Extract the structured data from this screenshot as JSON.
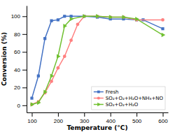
{
  "chart_data": {
    "type": "line",
    "xlabel": "Temperature (°C)",
    "ylabel": "Conversion (%)",
    "xlim": [
      80,
      620
    ],
    "ylim": [
      -8,
      112
    ],
    "xticks": [
      100,
      200,
      300,
      400,
      500,
      600
    ],
    "yticks": [
      0,
      20,
      40,
      60,
      80,
      100
    ],
    "grid": false,
    "legend": "lower right",
    "series": [
      {
        "name": "Fresh",
        "color": "#4472c4",
        "marker": "square",
        "x": [
          100,
          125,
          150,
          175,
          200,
          225,
          250,
          300,
          350,
          400,
          450,
          500,
          525,
          600
        ],
        "values": [
          8,
          33,
          75,
          95,
          96,
          100,
          100,
          100,
          99,
          97,
          97,
          96,
          96,
          86
        ]
      },
      {
        "name": "SO₂+O₂+H₂O+NH₃+NO",
        "color": "#ff8080",
        "marker": "circle",
        "x": [
          100,
          125,
          150,
          175,
          200,
          225,
          250,
          275,
          300,
          350,
          400,
          450,
          500,
          600
        ],
        "values": [
          1,
          4,
          14,
          27,
          42,
          55,
          73,
          91,
          100,
          100,
          99,
          99,
          96,
          96
        ]
      },
      {
        "name": "SO₂+O₂+H₂O",
        "color": "#70c030",
        "marker": "triangle-right",
        "x": [
          100,
          125,
          150,
          175,
          200,
          225,
          250,
          300,
          350,
          400,
          450,
          500,
          600
        ],
        "values": [
          1,
          3,
          15,
          33,
          55,
          89,
          97,
          100,
          100,
          99,
          99,
          97,
          79
        ]
      }
    ]
  }
}
